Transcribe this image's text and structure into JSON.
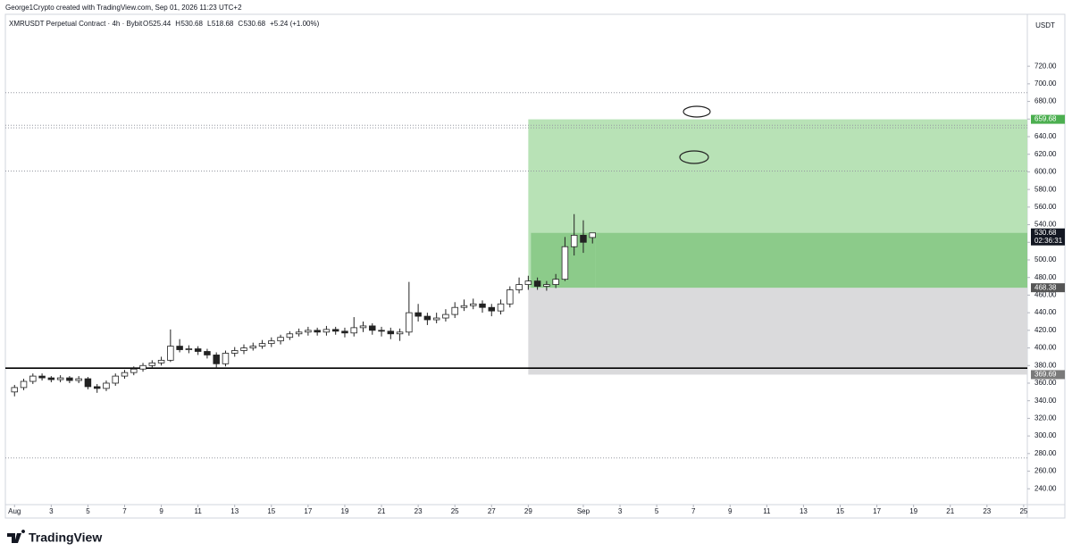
{
  "header": {
    "credit": "George1Crypto created with TradingView.com, Sep 01, 2026 11:23 UTC+2",
    "brand": "TradingView"
  },
  "chart_data": {
    "type": "candlestick",
    "legend": {
      "title": "XMRUSDT Perpetual Contract · 4h · Bybit",
      "fields": [
        "O",
        "H",
        "L",
        "C"
      ],
      "change": "+5.24 (+1.00%)"
    },
    "y_unit": "USDT",
    "x": [
      0,
      0.5,
      1,
      1.5,
      2,
      2.5,
      3,
      3.5,
      4,
      4.5,
      5,
      5.5,
      6,
      6.5,
      7,
      7.5,
      8,
      8.5,
      9,
      9.5,
      10,
      10.5,
      11,
      11.5,
      12,
      12.5,
      13,
      13.5,
      14,
      14.5,
      15,
      15.5,
      16,
      16.5,
      17,
      17.5,
      18,
      18.5,
      19,
      19.5,
      20,
      20.5,
      21,
      21.5,
      22,
      22.5,
      23,
      23.5,
      24,
      24.5,
      25,
      25.5,
      26,
      26.5,
      27,
      27.5,
      28,
      28.5,
      29,
      29.5,
      30,
      30.5,
      31,
      31.5
    ],
    "open": [
      350,
      355,
      362,
      368,
      366,
      364,
      366,
      363,
      365,
      356,
      354,
      360,
      368,
      372,
      376,
      380,
      383,
      386,
      402,
      398,
      399,
      396,
      392,
      382,
      394,
      397,
      400,
      402,
      405,
      408,
      412,
      416,
      418,
      420,
      418,
      421,
      419,
      417,
      423,
      425,
      420,
      419,
      416,
      418,
      440,
      436,
      432,
      434,
      438,
      446,
      448,
      450,
      446,
      442,
      450,
      466,
      472,
      476,
      470,
      472,
      478,
      515,
      528,
      525.44
    ],
    "high": [
      358,
      365,
      371,
      371,
      368,
      369,
      368,
      368,
      367,
      359,
      363,
      371,
      375,
      379,
      383,
      386,
      390,
      421,
      410,
      403,
      402,
      399,
      395,
      397,
      401,
      404,
      406,
      409,
      412,
      415,
      419,
      422,
      424,
      423,
      425,
      424,
      423,
      435,
      430,
      428,
      424,
      423,
      422,
      475,
      450,
      440,
      440,
      444,
      452,
      455,
      456,
      454,
      450,
      455,
      470,
      480,
      482,
      480,
      476,
      484,
      526,
      552,
      545,
      530.68
    ],
    "low": [
      345,
      352,
      359,
      363,
      361,
      361,
      360,
      360,
      353,
      349,
      351,
      357,
      365,
      369,
      373,
      377,
      380,
      384,
      395,
      394,
      392,
      388,
      377,
      379,
      390,
      393,
      397,
      399,
      401,
      404,
      409,
      413,
      414,
      414,
      414,
      415,
      412,
      413,
      418,
      415,
      413,
      410,
      408,
      414,
      430,
      426,
      428,
      430,
      434,
      442,
      444,
      440,
      436,
      438,
      446,
      462,
      466,
      466,
      465,
      468,
      476,
      505,
      508,
      518.68
    ],
    "close": [
      355,
      362,
      368,
      366,
      364,
      366,
      363,
      365,
      356,
      354,
      360,
      368,
      372,
      376,
      380,
      383,
      386,
      402,
      398,
      399,
      396,
      392,
      382,
      394,
      397,
      400,
      402,
      405,
      408,
      412,
      416,
      418,
      420,
      418,
      421,
      419,
      417,
      423,
      425,
      420,
      419,
      416,
      418,
      440,
      436,
      432,
      434,
      438,
      446,
      448,
      450,
      446,
      442,
      450,
      466,
      472,
      476,
      470,
      472,
      478,
      515,
      528,
      520,
      530.68
    ],
    "countdown": "02:36:31",
    "up_color": "#ffffff",
    "down_color": "#222222",
    "wick_color": "#222222",
    "xlim": [
      -0.5,
      55.2
    ],
    "xticks": [
      {
        "value": 0,
        "label": "Aug"
      },
      {
        "value": 2,
        "label": "3"
      },
      {
        "value": 4,
        "label": "5"
      },
      {
        "value": 6,
        "label": "7"
      },
      {
        "value": 8,
        "label": "9"
      },
      {
        "value": 10,
        "label": "11"
      },
      {
        "value": 12,
        "label": "13"
      },
      {
        "value": 14,
        "label": "15"
      },
      {
        "value": 16,
        "label": "17"
      },
      {
        "value": 18,
        "label": "19"
      },
      {
        "value": 20,
        "label": "21"
      },
      {
        "value": 22,
        "label": "23"
      },
      {
        "value": 24,
        "label": "25"
      },
      {
        "value": 26,
        "label": "27"
      },
      {
        "value": 28,
        "label": "29"
      },
      {
        "value": 31,
        "label": "Sep"
      },
      {
        "value": 33,
        "label": "3"
      },
      {
        "value": 35,
        "label": "5"
      },
      {
        "value": 37,
        "label": "7"
      },
      {
        "value": 39,
        "label": "9"
      },
      {
        "value": 41,
        "label": "11"
      },
      {
        "value": 43,
        "label": "13"
      },
      {
        "value": 45,
        "label": "15"
      },
      {
        "value": 47,
        "label": "17"
      },
      {
        "value": 49,
        "label": "19"
      },
      {
        "value": 51,
        "label": "21"
      },
      {
        "value": 53,
        "label": "23"
      },
      {
        "value": 55,
        "label": "25"
      }
    ],
    "ylim": [
      222,
      779
    ],
    "yticks": [
      {
        "value": 240,
        "label": "240.00"
      },
      {
        "value": 260,
        "label": "260.00"
      },
      {
        "value": 280,
        "label": "280.00"
      },
      {
        "value": 300,
        "label": "300.00"
      },
      {
        "value": 320,
        "label": "320.00"
      },
      {
        "value": 340,
        "label": "340.00"
      },
      {
        "value": 360,
        "label": "360.00"
      },
      {
        "value": 380,
        "label": "380.00"
      },
      {
        "value": 400,
        "label": "400.00"
      },
      {
        "value": 420,
        "label": "420.00"
      },
      {
        "value": 440,
        "label": "440.00"
      },
      {
        "value": 460,
        "label": "460.00"
      },
      {
        "value": 480,
        "label": "480.00"
      },
      {
        "value": 500,
        "label": "500.00"
      },
      {
        "value": 520,
        "label": "520.00"
      },
      {
        "value": 540,
        "label": "540.00"
      },
      {
        "value": 560,
        "label": "560.00"
      },
      {
        "value": 580,
        "label": "580.00"
      },
      {
        "value": 600,
        "label": "600.00"
      },
      {
        "value": 620,
        "label": "620.00"
      },
      {
        "value": 640,
        "label": "640.00"
      },
      {
        "value": 660,
        "label": "660.00"
      },
      {
        "value": 680,
        "label": "680.00"
      },
      {
        "value": 700,
        "label": "700.00"
      },
      {
        "value": 720,
        "label": "720.00"
      }
    ],
    "grid": false,
    "hlines": [
      {
        "value": 377,
        "style": "solid"
      },
      {
        "value": 690,
        "style": "dotted"
      },
      {
        "value": 653,
        "style": "dotted"
      },
      {
        "value": 650,
        "style": "dotted"
      },
      {
        "value": 601,
        "style": "dotted"
      },
      {
        "value": 275,
        "style": "dotted"
      }
    ],
    "position": {
      "start_x": 28,
      "entry": 468.38,
      "target": 659.68,
      "stop": 369.69,
      "target_color": "#b8e2b6",
      "open_color": "#8ccb8a",
      "stop_color": "#dadadc",
      "target_label_color": "#4caf50",
      "entry_label_color": "#555555",
      "stop_label_color": "#7a7a7a"
    }
  }
}
